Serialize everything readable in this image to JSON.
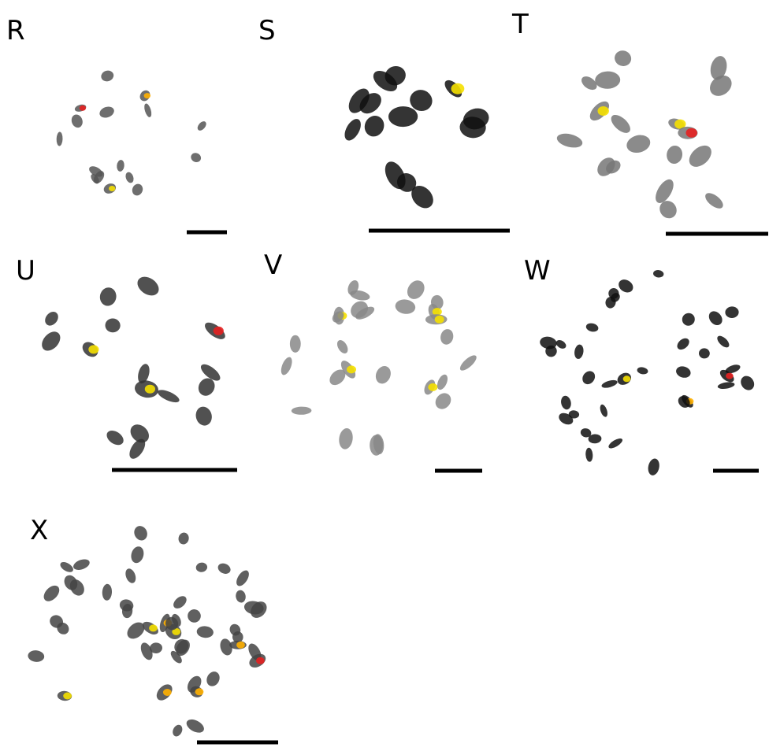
{
  "panels": [
    {
      "label": "R"
    },
    {
      "label": "S"
    },
    {
      "label": "T"
    },
    {
      "label": "U"
    },
    {
      "label": "V"
    },
    {
      "label": "W"
    },
    {
      "label": "X"
    }
  ]
}
